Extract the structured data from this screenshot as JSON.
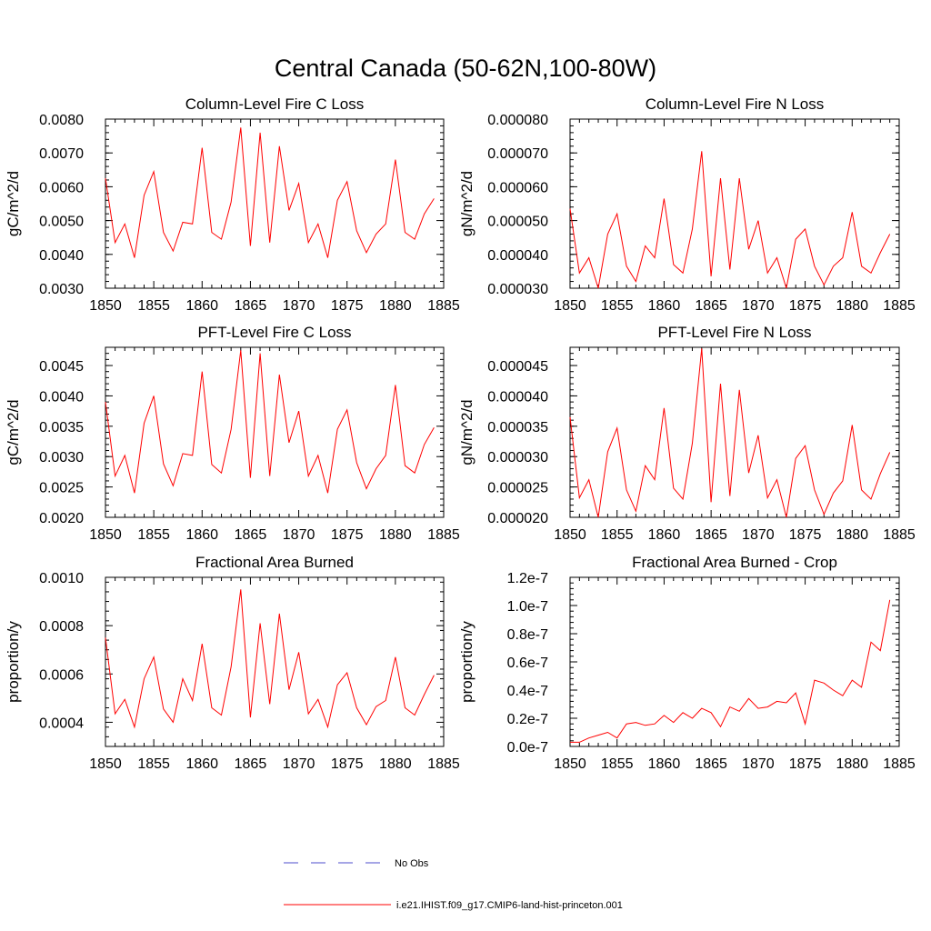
{
  "page_title": "Central Canada (50-62N,100-80W)",
  "colors": {
    "series": "#ff0000",
    "obs": "#4d4dcc",
    "axis": "#000000"
  },
  "legend": {
    "entries": [
      {
        "label": "No Obs",
        "style": "dashed",
        "color": "#4d4dcc"
      },
      {
        "label": "i.e21.IHIST.f09_g17.CMIP6-land-hist-princeton.001",
        "style": "solid",
        "color": "#ff0000"
      }
    ]
  },
  "chart_data": [
    {
      "type": "line",
      "title": "Column-Level Fire C Loss",
      "xlabel": "",
      "ylabel": "gC/m^2/d",
      "xlim": [
        1850,
        1885
      ],
      "ylim": [
        0.003,
        0.008
      ],
      "xticks": [
        "1850",
        "1855",
        "1860",
        "1865",
        "1870",
        "1875",
        "1880",
        "1885"
      ],
      "yticks": [
        "0.0030",
        "0.0040",
        "0.0050",
        "0.0060",
        "0.0070",
        "0.0080"
      ],
      "x": [
        1850,
        1851,
        1852,
        1853,
        1854,
        1855,
        1856,
        1857,
        1858,
        1859,
        1860,
        1861,
        1862,
        1863,
        1864,
        1865,
        1866,
        1867,
        1868,
        1869,
        1870,
        1871,
        1872,
        1873,
        1874,
        1875,
        1876,
        1877,
        1878,
        1879,
        1880,
        1881,
        1882,
        1883,
        1884
      ],
      "series": [
        {
          "values": [
            0.00625,
            0.00435,
            0.0049,
            0.0039,
            0.00575,
            0.00645,
            0.00465,
            0.0041,
            0.00495,
            0.0049,
            0.00715,
            0.00465,
            0.00445,
            0.00555,
            0.00775,
            0.00425,
            0.0076,
            0.00435,
            0.0072,
            0.0053,
            0.0061,
            0.00435,
            0.0049,
            0.0039,
            0.0056,
            0.00615,
            0.0047,
            0.00405,
            0.0046,
            0.0049,
            0.0068,
            0.00465,
            0.00445,
            0.0052,
            0.00565
          ]
        }
      ]
    },
    {
      "type": "line",
      "title": "Column-Level Fire N Loss",
      "xlabel": "",
      "ylabel": "gN/m^2/d",
      "xlim": [
        1850,
        1885
      ],
      "ylim": [
        3e-05,
        8e-05
      ],
      "xticks": [
        "1850",
        "1855",
        "1860",
        "1865",
        "1870",
        "1875",
        "1880",
        "1885"
      ],
      "yticks": [
        "0.000030",
        "0.000040",
        "0.000050",
        "0.000060",
        "0.000070",
        "0.000080"
      ],
      "x": [
        1850,
        1851,
        1852,
        1853,
        1854,
        1855,
        1856,
        1857,
        1858,
        1859,
        1860,
        1861,
        1862,
        1863,
        1864,
        1865,
        1866,
        1867,
        1868,
        1869,
        1870,
        1871,
        1872,
        1873,
        1874,
        1875,
        1876,
        1877,
        1878,
        1879,
        1880,
        1881,
        1882,
        1883,
        1884
      ],
      "series": [
        {
          "values": [
            5.35e-05,
            3.45e-05,
            3.9e-05,
            3e-05,
            4.6e-05,
            5.2e-05,
            3.65e-05,
            3.2e-05,
            4.25e-05,
            3.9e-05,
            5.65e-05,
            3.7e-05,
            3.45e-05,
            4.75e-05,
            7.05e-05,
            3.35e-05,
            6.25e-05,
            3.55e-05,
            6.25e-05,
            4.15e-05,
            5e-05,
            3.45e-05,
            3.9e-05,
            3e-05,
            4.45e-05,
            4.75e-05,
            3.65e-05,
            3.1e-05,
            3.65e-05,
            3.9e-05,
            5.25e-05,
            3.65e-05,
            3.45e-05,
            4.05e-05,
            4.6e-05
          ]
        }
      ]
    },
    {
      "type": "line",
      "title": "PFT-Level Fire C Loss",
      "xlabel": "",
      "ylabel": "gC/m^2/d",
      "xlim": [
        1850,
        1885
      ],
      "ylim": [
        0.002,
        0.0048
      ],
      "xticks": [
        "1850",
        "1855",
        "1860",
        "1865",
        "1870",
        "1875",
        "1880",
        "1885"
      ],
      "yticks": [
        "0.0020",
        "0.0025",
        "0.0030",
        "0.0035",
        "0.0040",
        "0.0045"
      ],
      "x": [
        1850,
        1851,
        1852,
        1853,
        1854,
        1855,
        1856,
        1857,
        1858,
        1859,
        1860,
        1861,
        1862,
        1863,
        1864,
        1865,
        1866,
        1867,
        1868,
        1869,
        1870,
        1871,
        1872,
        1873,
        1874,
        1875,
        1876,
        1877,
        1878,
        1879,
        1880,
        1881,
        1882,
        1883,
        1884
      ],
      "series": [
        {
          "values": [
            0.0039,
            0.00268,
            0.00302,
            0.0024,
            0.00355,
            0.004,
            0.00288,
            0.00252,
            0.00305,
            0.00302,
            0.0044,
            0.00287,
            0.00273,
            0.00345,
            0.00475,
            0.00265,
            0.0047,
            0.00268,
            0.00435,
            0.00323,
            0.00375,
            0.00268,
            0.00302,
            0.0024,
            0.00345,
            0.00377,
            0.0029,
            0.00247,
            0.0028,
            0.00302,
            0.00418,
            0.00285,
            0.00273,
            0.0032,
            0.00348
          ]
        }
      ]
    },
    {
      "type": "line",
      "title": "PFT-Level Fire N Loss",
      "xlabel": "",
      "ylabel": "gN/m^2/d",
      "xlim": [
        1850,
        1885
      ],
      "ylim": [
        2e-05,
        4.8e-05
      ],
      "xticks": [
        "1850",
        "1855",
        "1860",
        "1865",
        "1870",
        "1875",
        "1880",
        "1885"
      ],
      "yticks": [
        "0.000020",
        "0.000025",
        "0.000030",
        "0.000035",
        "0.000040",
        "0.000045"
      ],
      "x": [
        1850,
        1851,
        1852,
        1853,
        1854,
        1855,
        1856,
        1857,
        1858,
        1859,
        1860,
        1861,
        1862,
        1863,
        1864,
        1865,
        1866,
        1867,
        1868,
        1869,
        1870,
        1871,
        1872,
        1873,
        1874,
        1875,
        1876,
        1877,
        1878,
        1879,
        1880,
        1881,
        1882,
        1883,
        1884
      ],
      "series": [
        {
          "values": [
            3.65e-05,
            2.32e-05,
            2.62e-05,
            2e-05,
            3.08e-05,
            3.47e-05,
            2.45e-05,
            2.1e-05,
            2.85e-05,
            2.62e-05,
            3.8e-05,
            2.48e-05,
            2.3e-05,
            3.22e-05,
            4.78e-05,
            2.25e-05,
            4.2e-05,
            2.35e-05,
            4.1e-05,
            2.73e-05,
            3.35e-05,
            2.32e-05,
            2.62e-05,
            2e-05,
            2.97e-05,
            3.18e-05,
            2.45e-05,
            2.05e-05,
            2.4e-05,
            2.6e-05,
            3.52e-05,
            2.45e-05,
            2.3e-05,
            2.72e-05,
            3.07e-05
          ]
        }
      ]
    },
    {
      "type": "line",
      "title": "Fractional Area Burned",
      "xlabel": "",
      "ylabel": "proportion/y",
      "xlim": [
        1850,
        1885
      ],
      "ylim": [
        0.0003,
        0.001
      ],
      "xticks": [
        "1850",
        "1855",
        "1860",
        "1865",
        "1870",
        "1875",
        "1880",
        "1885"
      ],
      "yticks": [
        "0.0004",
        "0.0006",
        "0.0008",
        "0.0010"
      ],
      "ytick_values": [
        0.0004,
        0.0006,
        0.0008,
        0.001
      ],
      "x": [
        1850,
        1851,
        1852,
        1853,
        1854,
        1855,
        1856,
        1857,
        1858,
        1859,
        1860,
        1861,
        1862,
        1863,
        1864,
        1865,
        1866,
        1867,
        1868,
        1869,
        1870,
        1871,
        1872,
        1873,
        1874,
        1875,
        1876,
        1877,
        1878,
        1879,
        1880,
        1881,
        1882,
        1883,
        1884
      ],
      "series": [
        {
          "values": [
            0.00075,
            0.000435,
            0.000495,
            0.00038,
            0.00058,
            0.00067,
            0.000455,
            0.0004,
            0.00058,
            0.00049,
            0.000725,
            0.00046,
            0.00043,
            0.00063,
            0.00095,
            0.00042,
            0.00081,
            0.000475,
            0.00085,
            0.000535,
            0.00069,
            0.000435,
            0.000495,
            0.00038,
            0.000555,
            0.000605,
            0.00046,
            0.00039,
            0.000465,
            0.00049,
            0.00067,
            0.00046,
            0.00043,
            0.000515,
            0.000595
          ]
        }
      ]
    },
    {
      "type": "line",
      "title": "Fractional Area Burned - Crop",
      "xlabel": "",
      "ylabel": "proportion/y",
      "xlim": [
        1850,
        1885
      ],
      "ylim": [
        0,
        1.2e-07
      ],
      "xticks": [
        "1850",
        "1855",
        "1860",
        "1865",
        "1870",
        "1875",
        "1880",
        "1885"
      ],
      "yticks": [
        "0.0e-7",
        "0.2e-7",
        "0.4e-7",
        "0.6e-7",
        "0.8e-7",
        "1.0e-7",
        "1.2e-7"
      ],
      "x": [
        1850,
        1851,
        1852,
        1853,
        1854,
        1855,
        1856,
        1857,
        1858,
        1859,
        1860,
        1861,
        1862,
        1863,
        1864,
        1865,
        1866,
        1867,
        1868,
        1869,
        1870,
        1871,
        1872,
        1873,
        1874,
        1875,
        1876,
        1877,
        1878,
        1879,
        1880,
        1881,
        1882,
        1883,
        1884
      ],
      "series": [
        {
          "values": [
            3e-09,
            3e-09,
            6e-09,
            8e-09,
            1e-08,
            6e-09,
            1.6e-08,
            1.7e-08,
            1.5e-08,
            1.6e-08,
            2.2e-08,
            1.7e-08,
            2.4e-08,
            2e-08,
            2.7e-08,
            2.4e-08,
            1.4e-08,
            2.8e-08,
            2.5e-08,
            3.4e-08,
            2.7e-08,
            2.8e-08,
            3.2e-08,
            3.1e-08,
            3.8e-08,
            1.6e-08,
            4.7e-08,
            4.5e-08,
            4e-08,
            3.6e-08,
            4.7e-08,
            4.2e-08,
            7.4e-08,
            6.8e-08,
            1.04e-07
          ]
        }
      ]
    }
  ]
}
